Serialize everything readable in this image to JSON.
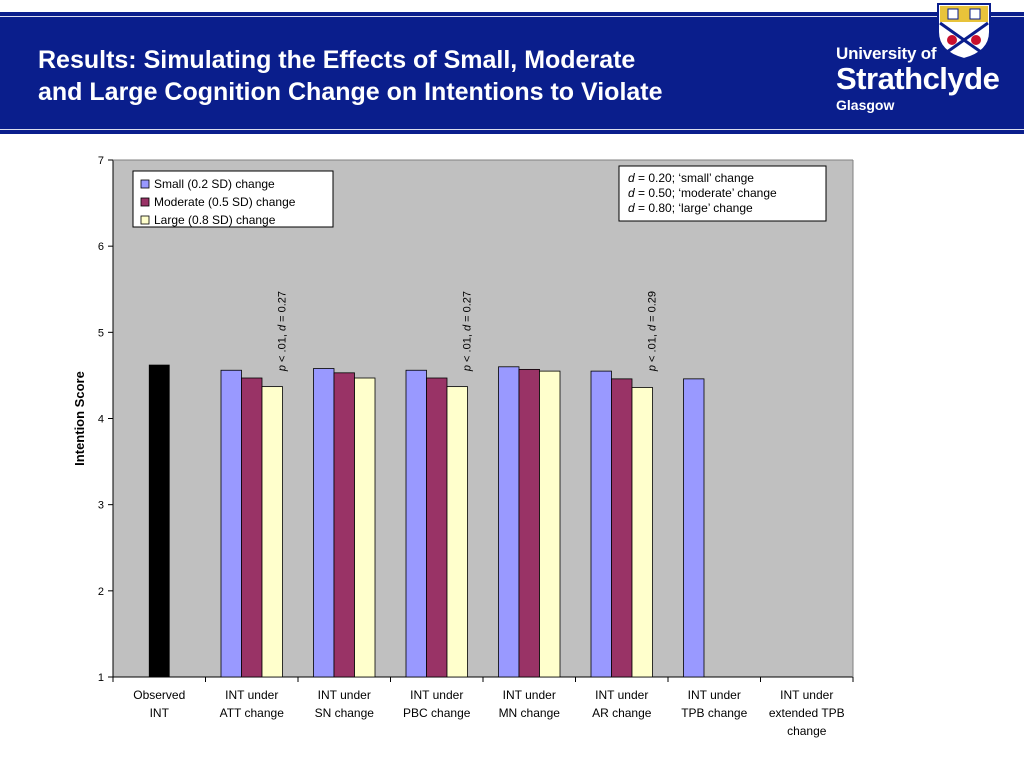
{
  "header": {
    "title_line1": "Results: Simulating the Effects of Small, Moderate",
    "title_line2": "and Large Cognition Change on Intentions to Violate",
    "logo_line1": "University of",
    "logo_line2": "Strathclyde",
    "logo_line3": "Glasgow",
    "logo_icon": "university-shield-icon",
    "band_color": "#0a1e8c"
  },
  "chart_data": {
    "type": "bar",
    "ylabel": "Intention Score",
    "xlabel": "",
    "ylim": [
      1,
      7
    ],
    "yticks": [
      "1",
      "2",
      "3",
      "4",
      "5",
      "6",
      "7"
    ],
    "grid": false,
    "plot_background": "#c0c0c0",
    "categories": [
      [
        "Observed",
        "INT"
      ],
      [
        "INT under",
        "ATT change"
      ],
      [
        "INT under",
        "SN change"
      ],
      [
        "INT under",
        "PBC change"
      ],
      [
        "INT under",
        "MN change"
      ],
      [
        "INT under",
        "AR change"
      ],
      [
        "INT under",
        "TPB change"
      ],
      [
        "INT under",
        "extended TPB",
        "change"
      ]
    ],
    "observed": {
      "value": 4.62,
      "color": "#000000"
    },
    "series": [
      {
        "name": "Small (0.2 SD) change",
        "color": "#9999ff",
        "values": [
          null,
          4.56,
          4.58,
          4.56,
          4.6,
          4.55,
          4.46,
          null
        ]
      },
      {
        "name": "Moderate (0.5 SD) change",
        "color": "#993366",
        "values": [
          null,
          4.47,
          4.53,
          4.47,
          4.57,
          4.46,
          null,
          null
        ]
      },
      {
        "name": "Large (0.8 SD) change",
        "color": "#ffffcc",
        "values": [
          null,
          4.37,
          4.47,
          4.37,
          4.55,
          4.36,
          null,
          null
        ]
      }
    ],
    "legend_position": "top-left",
    "annotations": [
      {
        "category_index": 1,
        "p_symbol": "p",
        "mid": " < .01, ",
        "d_symbol": "d",
        "value": " = 0.27"
      },
      {
        "category_index": 3,
        "p_symbol": "p",
        "mid": " < .01, ",
        "d_symbol": "d",
        "value": " = 0.27"
      },
      {
        "category_index": 5,
        "p_symbol": "p",
        "mid": " < .01, ",
        "d_symbol": "d",
        "value": " = 0.29"
      }
    ],
    "effect_size_box": {
      "position": "top-right",
      "lines": [
        {
          "symbol": "d",
          "text": " = 0.20; ‘small’ change"
        },
        {
          "symbol": "d",
          "text": " = 0.50; ‘moderate’ change"
        },
        {
          "symbol": "d",
          "text": " = 0.80; ‘large’ change"
        }
      ]
    }
  }
}
